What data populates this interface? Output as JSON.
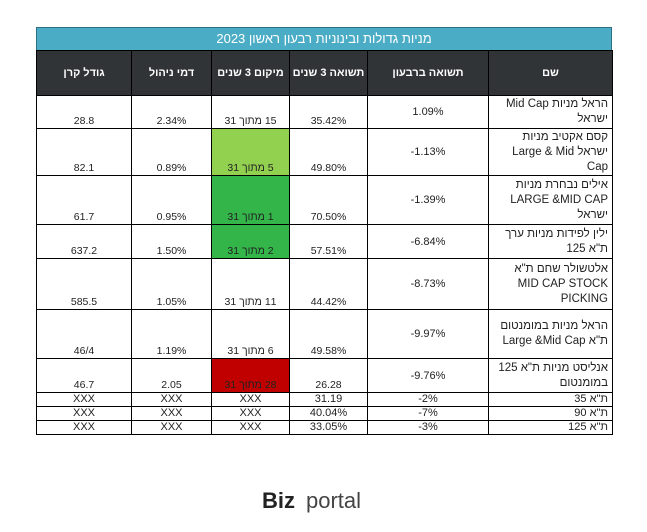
{
  "title": "מניות גדולות ובינוניות רבעון ראשון 2023",
  "headers": {
    "name": "שם",
    "quarter_return": "תשואה ברבעון",
    "return_3y": "תשואה 3 שנים",
    "rank_3y": "מיקום 3 שנים",
    "mgmt_fee": "דמי ניהול",
    "fund_size": "גודל קרן"
  },
  "rows": [
    {
      "name": "הראל מניות Mid Cap ישראל",
      "quarter_return": "1.09%",
      "return_3y": "35.42%",
      "rank_3y": "15 מתוך 31",
      "mgmt_fee": "2.34%",
      "fund_size": "28.8"
    },
    {
      "name": "קסם אקטיב מניות ישראל Large & Mid Cap",
      "quarter_return": "-1.13%",
      "return_3y": "49.80%",
      "rank_3y": "5 מתוך 31",
      "mgmt_fee": "0.89%",
      "fund_size": "82.1"
    },
    {
      "name": "אילים נבחרת מניות LARGE &MID CAP ישראל",
      "quarter_return": "-1.39%",
      "return_3y": "70.50%",
      "rank_3y": "1 מתוך 31",
      "mgmt_fee": "0.95%",
      "fund_size": "61.7"
    },
    {
      "name": "ילין לפידות מניות ערך ת\"א 125",
      "quarter_return": "-6.84%",
      "return_3y": "57.51%",
      "rank_3y": "2 מתוך 31",
      "mgmt_fee": "1.50%",
      "fund_size": "637.2"
    },
    {
      "name": "אלטשולר שחם ת\"א MID CAP STOCK PICKING",
      "quarter_return": "-8.73%",
      "return_3y": "44.42%",
      "rank_3y": "11 מתוך 31",
      "mgmt_fee": "1.05%",
      "fund_size": "585.5"
    },
    {
      "name": "הראל מניות במומנטום ת\"א Large &Mid Cap",
      "quarter_return": "-9.97%",
      "return_3y": "49.58%",
      "rank_3y": "6 מתוך 31",
      "mgmt_fee": "1.19%",
      "fund_size": "46/4"
    },
    {
      "name": "אנליסט מניות ת\"א 125 במומנטום",
      "quarter_return": "-9.76%",
      "return_3y": "26.28",
      "rank_3y": "28 מתוך 31",
      "mgmt_fee": "2.05",
      "fund_size": "46.7"
    },
    {
      "name": "ת\"א 35",
      "quarter_return": "-2%",
      "return_3y": "31.19",
      "rank_3y": "XXX",
      "mgmt_fee": "XXX",
      "fund_size": "XXX"
    },
    {
      "name": "ת\"א 90",
      "quarter_return": "-7%",
      "return_3y": "40.04%",
      "rank_3y": "XXX",
      "mgmt_fee": "XXX",
      "fund_size": "XXX"
    },
    {
      "name": "ת\"א 125",
      "quarter_return": "-3%",
      "return_3y": "33.05%",
      "rank_3y": "XXX",
      "mgmt_fee": "XXX",
      "fund_size": "XXX"
    }
  ],
  "rank_highlight_colors": {
    "light_green": "#92d050",
    "green": "#33b54a",
    "red": "#c00000"
  },
  "header_bg": "#303437",
  "title_bg": "#4bacc6",
  "logo": {
    "bold": "Biz",
    "light": "portal"
  }
}
